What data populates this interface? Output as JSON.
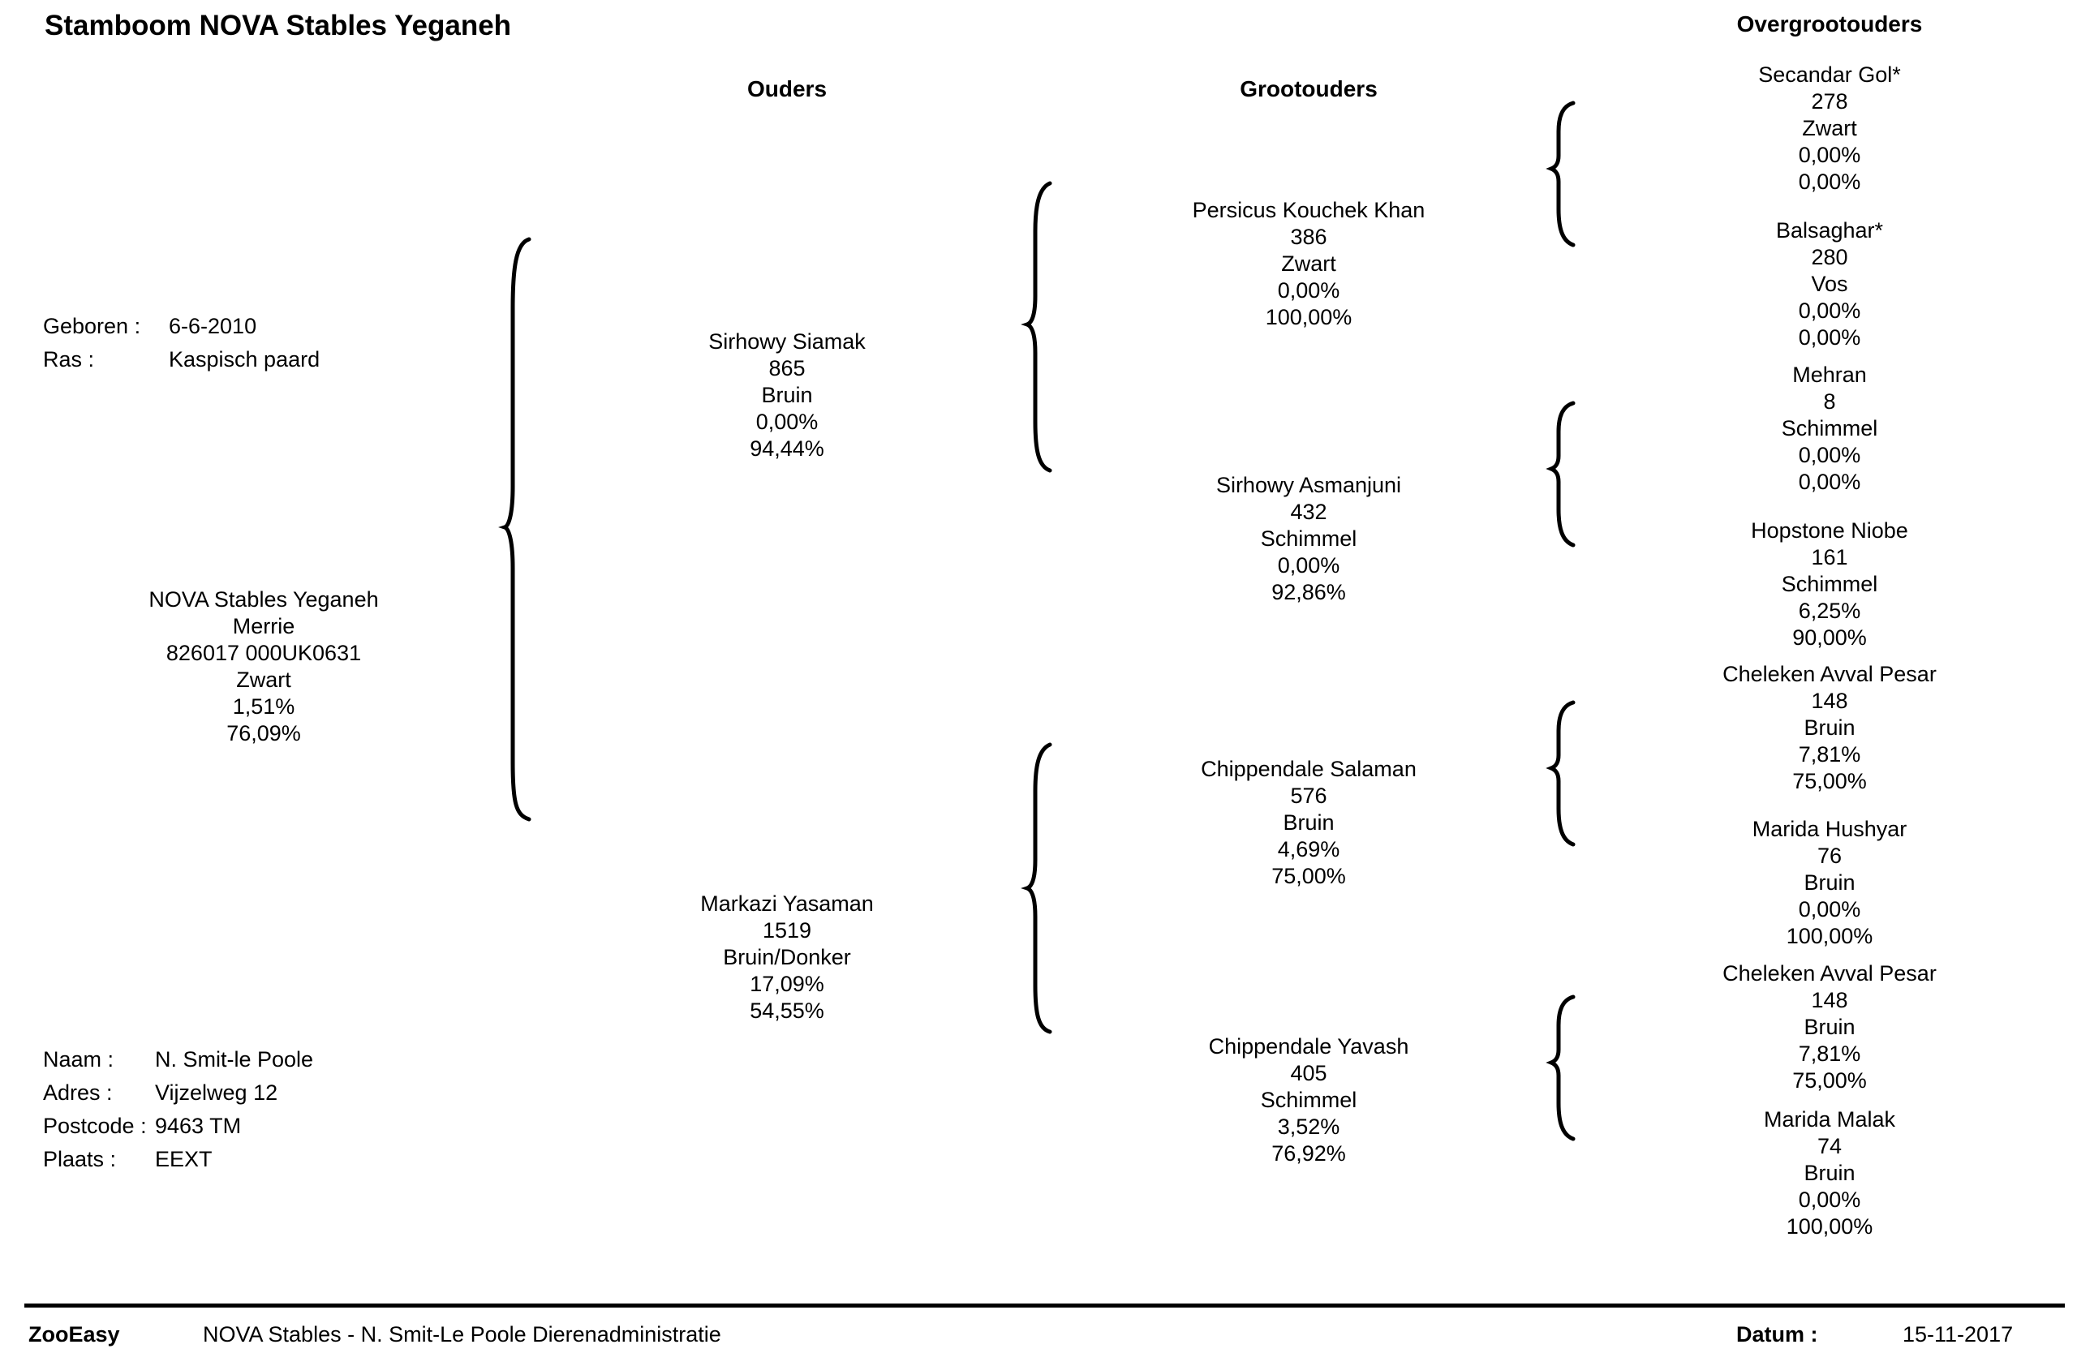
{
  "title": "Stamboom NOVA Stables Yeganeh",
  "headers": {
    "ouders": "Ouders",
    "grootouders": "Grootouders",
    "overgrootouders": "Overgrootouders"
  },
  "info": {
    "geboren_label": "Geboren :",
    "geboren": "6-6-2010",
    "ras_label": "Ras :",
    "ras": "Kaspisch paard"
  },
  "subject": {
    "name": "NOVA Stables Yeganeh",
    "sex": "Merrie",
    "id": "826017 000UK0631",
    "color": "Zwart",
    "p1": "1,51%",
    "p2": "76,09%"
  },
  "parents": [
    {
      "name": "Sirhowy Siamak",
      "num": "865",
      "color": "Bruin",
      "p1": "0,00%",
      "p2": "94,44%"
    },
    {
      "name": "Markazi Yasaman",
      "num": "1519",
      "color": "Bruin/Donker",
      "p1": "17,09%",
      "p2": "54,55%"
    }
  ],
  "grandparents": [
    {
      "name": "Persicus Kouchek Khan",
      "num": "386",
      "color": "Zwart",
      "p1": "0,00%",
      "p2": "100,00%"
    },
    {
      "name": "Sirhowy Asmanjuni",
      "num": "432",
      "color": "Schimmel",
      "p1": "0,00%",
      "p2": "92,86%"
    },
    {
      "name": "Chippendale Salaman",
      "num": "576",
      "color": "Bruin",
      "p1": "4,69%",
      "p2": "75,00%"
    },
    {
      "name": "Chippendale Yavash",
      "num": "405",
      "color": "Schimmel",
      "p1": "3,52%",
      "p2": "76,92%"
    }
  ],
  "great_grandparents": [
    {
      "name": "Secandar Gol*",
      "num": "278",
      "color": "Zwart",
      "p1": "0,00%",
      "p2": "0,00%"
    },
    {
      "name": "Balsaghar*",
      "num": "280",
      "color": "Vos",
      "p1": "0,00%",
      "p2": "0,00%"
    },
    {
      "name": "Mehran",
      "num": "8",
      "color": "Schimmel",
      "p1": "0,00%",
      "p2": "0,00%"
    },
    {
      "name": "Hopstone Niobe",
      "num": "161",
      "color": "Schimmel",
      "p1": "6,25%",
      "p2": "90,00%"
    },
    {
      "name": "Cheleken Avval Pesar",
      "num": "148",
      "color": "Bruin",
      "p1": "7,81%",
      "p2": "75,00%"
    },
    {
      "name": "Marida Hushyar",
      "num": "76",
      "color": "Bruin",
      "p1": "0,00%",
      "p2": "100,00%"
    },
    {
      "name": "Cheleken Avval Pesar",
      "num": "148",
      "color": "Bruin",
      "p1": "7,81%",
      "p2": "75,00%"
    },
    {
      "name": "Marida Malak",
      "num": "74",
      "color": "Bruin",
      "p1": "0,00%",
      "p2": "100,00%"
    }
  ],
  "owner": {
    "naam_label": "Naam :",
    "naam": "N.  Smit-le Poole",
    "adres_label": "Adres :",
    "adres": "Vijzelweg 12",
    "postcode_label": "Postcode :",
    "postcode": "9463 TM",
    "plaats_label": "Plaats :",
    "plaats": "EEXT"
  },
  "footer": {
    "brand": "ZooEasy",
    "text": "NOVA Stables - N. Smit-Le Poole Dierenadministratie",
    "datum_label": "Datum :",
    "datum": "15-11-2017"
  }
}
